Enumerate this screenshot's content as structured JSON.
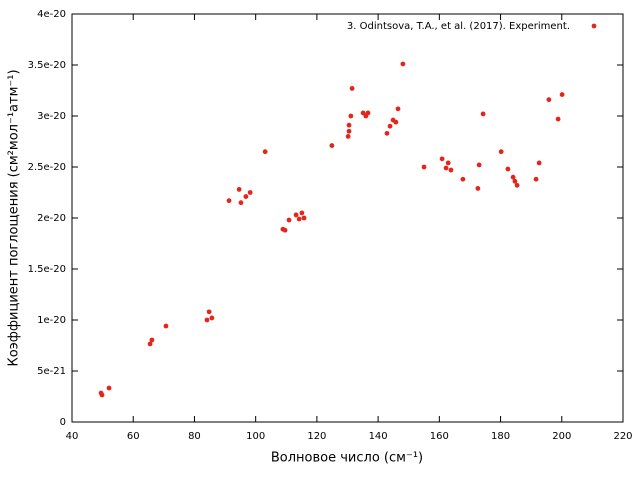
{
  "chart_data": {
    "type": "scatter",
    "x_label": "Волновое число (см⁻¹)",
    "y_label": "Коэффициент поглощения (см²мол⁻¹атм⁻¹)",
    "series": [
      {
        "name": "3. Odintsova, T.A., et al. (2017). Experiment.",
        "color": "#e3251b",
        "x": [
          49.5,
          49.8,
          52.1,
          65.5,
          66.1,
          70.7,
          84.1,
          84.8,
          85.7,
          91.3,
          94.6,
          95.2,
          96.8,
          98.2,
          103.1,
          108.9,
          109.6,
          110.9,
          113.2,
          114.2,
          115.1,
          115.8,
          124.9,
          130.2,
          130.5,
          130.5,
          131.1,
          131.5,
          135.1,
          136.0,
          136.7,
          142.9,
          143.9,
          144.9,
          145.8,
          146.5,
          148.1,
          155.0,
          160.9,
          162.2,
          162.9,
          163.8,
          167.7,
          172.6,
          173.0,
          174.3,
          180.2,
          182.4,
          184.1,
          184.7,
          185.4,
          191.6,
          192.6,
          195.8,
          198.8,
          200.1
        ],
        "values": [
          2.84e-21,
          2.65e-21,
          3.33e-21,
          7.65e-21,
          8.04e-21,
          9.41e-21,
          1e-20,
          1.08e-20,
          1.02e-20,
          2.17e-20,
          2.28e-20,
          2.15e-20,
          2.21e-20,
          2.25e-20,
          2.65e-20,
          1.89e-20,
          1.88e-20,
          1.98e-20,
          2.03e-20,
          1.99e-20,
          2.05e-20,
          2e-20,
          2.71e-20,
          2.8e-20,
          2.85e-20,
          2.91e-20,
          3e-20,
          3.27e-20,
          3.03e-20,
          3e-20,
          3.03e-20,
          2.83e-20,
          2.9e-20,
          2.96e-20,
          2.94e-20,
          3.07e-20,
          3.51e-20,
          2.5e-20,
          2.58e-20,
          2.49e-20,
          2.54e-20,
          2.47e-20,
          2.38e-20,
          2.29e-20,
          2.52e-20,
          3.02e-20,
          2.65e-20,
          2.48e-20,
          2.4e-20,
          2.36e-20,
          2.32e-20,
          2.38e-20,
          2.54e-20,
          3.16e-20,
          2.97e-20,
          3.21e-20
        ]
      }
    ],
    "xlim": [
      40,
      220
    ],
    "xticks": [
      40,
      60,
      80,
      100,
      120,
      140,
      160,
      180,
      200,
      220
    ],
    "ylim": [
      0,
      4e-20
    ],
    "yticks": [
      0,
      5e-21,
      1e-20,
      1.5e-20,
      2e-20,
      2.5e-20,
      3e-20,
      3.5e-20,
      4e-20
    ],
    "legend": "top-right",
    "grid": false
  }
}
